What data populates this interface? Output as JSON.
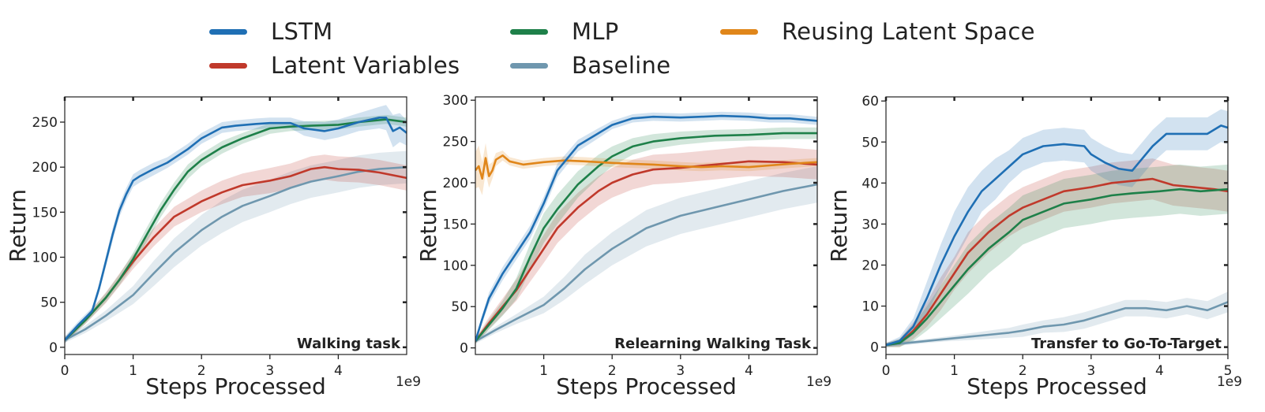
{
  "legend": [
    {
      "name": "LSTM",
      "color": "#1f6fb4"
    },
    {
      "name": "Latent Variables",
      "color": "#c0392b"
    },
    {
      "name": "MLP",
      "color": "#1e8049"
    },
    {
      "name": "Baseline",
      "color": "#6f97ae"
    },
    {
      "name": "Reusing Latent Space",
      "color": "#e0861a"
    }
  ],
  "chart_data": [
    {
      "type": "line",
      "annotation": "Walking task",
      "ylabel": "Return",
      "xlabel": "Steps Processed",
      "xexp": "1e9",
      "xlim": [
        0,
        5
      ],
      "ylim": [
        -8,
        278
      ],
      "xticks": [
        0,
        1,
        2,
        3,
        4
      ],
      "yticks": [
        0,
        50,
        100,
        150,
        200,
        250
      ],
      "series": [
        {
          "name": "LSTM",
          "color": "#1f6fb4",
          "x": [
            0,
            0.2,
            0.4,
            0.5,
            0.6,
            0.7,
            0.8,
            0.9,
            1.0,
            1.1,
            1.3,
            1.5,
            1.8,
            2.0,
            2.3,
            2.5,
            2.8,
            3.0,
            3.3,
            3.5,
            3.8,
            4.0,
            4.3,
            4.6,
            4.7,
            4.8,
            4.9,
            5.0
          ],
          "y": [
            8,
            25,
            40,
            65,
            95,
            125,
            152,
            170,
            185,
            190,
            198,
            205,
            220,
            232,
            244,
            246,
            248,
            249,
            249,
            243,
            240,
            243,
            250,
            255,
            255,
            240,
            244,
            238
          ],
          "band": [
            4,
            4,
            4,
            5,
            6,
            7,
            7,
            7,
            7,
            7,
            7,
            6,
            6,
            6,
            6,
            6,
            6,
            6,
            6,
            8,
            10,
            10,
            10,
            12,
            14,
            18,
            16,
            14
          ]
        },
        {
          "name": "MLP",
          "color": "#1e8049",
          "x": [
            0,
            0.3,
            0.6,
            0.8,
            1.0,
            1.2,
            1.4,
            1.6,
            1.8,
            2.0,
            2.3,
            2.6,
            3.0,
            3.3,
            3.6,
            4.0,
            4.3,
            4.7,
            5.0
          ],
          "y": [
            8,
            30,
            55,
            75,
            98,
            125,
            152,
            175,
            195,
            208,
            222,
            232,
            243,
            245,
            246,
            247,
            250,
            253,
            250
          ],
          "band": [
            3,
            4,
            5,
            6,
            7,
            8,
            8,
            8,
            8,
            7,
            7,
            6,
            6,
            5,
            5,
            5,
            5,
            5,
            5
          ]
        },
        {
          "name": "Latent Variables",
          "color": "#c0392b",
          "x": [
            0,
            0.3,
            0.6,
            0.8,
            1.0,
            1.3,
            1.6,
            2.0,
            2.3,
            2.6,
            3.0,
            3.3,
            3.6,
            3.8,
            4.0,
            4.3,
            4.6,
            5.0
          ],
          "y": [
            8,
            30,
            55,
            75,
            95,
            122,
            145,
            162,
            172,
            180,
            185,
            190,
            198,
            200,
            198,
            197,
            194,
            188
          ],
          "band": [
            3,
            4,
            6,
            7,
            8,
            10,
            11,
            12,
            13,
            13,
            14,
            14,
            14,
            14,
            14,
            14,
            14,
            14
          ]
        },
        {
          "name": "Baseline",
          "color": "#6f97ae",
          "x": [
            0,
            0.3,
            0.6,
            1.0,
            1.3,
            1.6,
            2.0,
            2.3,
            2.6,
            3.0,
            3.3,
            3.6,
            4.0,
            4.3,
            4.6,
            5.0
          ],
          "y": [
            8,
            20,
            35,
            58,
            82,
            105,
            130,
            145,
            157,
            168,
            177,
            184,
            190,
            195,
            198,
            200
          ],
          "band": [
            3,
            4,
            6,
            10,
            14,
            16,
            17,
            18,
            18,
            18,
            18,
            18,
            18,
            18,
            18,
            18
          ]
        }
      ]
    },
    {
      "type": "line",
      "annotation": "Relearning Walking Task",
      "ylabel": "Return",
      "xlabel": "Steps Processed",
      "xexp": "1e9",
      "xlim": [
        0,
        5
      ],
      "ylim": [
        -8,
        304
      ],
      "xticks": [
        1,
        2,
        3,
        4
      ],
      "yticks": [
        0,
        50,
        100,
        150,
        200,
        250,
        300
      ],
      "series": [
        {
          "name": "LSTM",
          "color": "#1f6fb4",
          "x": [
            0,
            0.1,
            0.2,
            0.4,
            0.6,
            0.8,
            1.0,
            1.2,
            1.5,
            1.8,
            2.0,
            2.3,
            2.6,
            3.0,
            3.3,
            3.6,
            4.0,
            4.3,
            4.6,
            5.0
          ],
          "y": [
            8,
            35,
            60,
            90,
            115,
            140,
            175,
            215,
            245,
            260,
            270,
            278,
            280,
            279,
            280,
            281,
            280,
            278,
            278,
            275
          ],
          "band": [
            3,
            5,
            7,
            8,
            8,
            8,
            8,
            8,
            7,
            6,
            5,
            5,
            5,
            5,
            5,
            5,
            5,
            5,
            5,
            5
          ]
        },
        {
          "name": "MLP",
          "color": "#1e8049",
          "x": [
            0,
            0.2,
            0.4,
            0.6,
            0.8,
            1.0,
            1.2,
            1.5,
            1.8,
            2.0,
            2.3,
            2.6,
            3.0,
            3.5,
            4.0,
            4.5,
            5.0
          ],
          "y": [
            8,
            28,
            48,
            72,
            110,
            145,
            168,
            198,
            220,
            232,
            244,
            250,
            254,
            257,
            258,
            260,
            260
          ],
          "band": [
            3,
            6,
            9,
            13,
            16,
            18,
            18,
            16,
            14,
            12,
            10,
            9,
            8,
            7,
            7,
            7,
            7
          ]
        },
        {
          "name": "Latent Variables",
          "color": "#c0392b",
          "x": [
            0,
            0.2,
            0.4,
            0.6,
            0.8,
            1.0,
            1.2,
            1.5,
            1.8,
            2.0,
            2.3,
            2.6,
            3.0,
            3.5,
            4.0,
            4.5,
            5.0
          ],
          "y": [
            8,
            30,
            50,
            70,
            95,
            120,
            145,
            170,
            190,
            200,
            210,
            216,
            218,
            222,
            226,
            225,
            222
          ],
          "band": [
            3,
            7,
            10,
            13,
            15,
            17,
            18,
            18,
            18,
            18,
            18,
            18,
            18,
            18,
            18,
            18,
            18
          ]
        },
        {
          "name": "Baseline",
          "color": "#6f97ae",
          "x": [
            0,
            0.3,
            0.6,
            1.0,
            1.3,
            1.6,
            2.0,
            2.5,
            3.0,
            3.5,
            4.0,
            4.5,
            5.0
          ],
          "y": [
            8,
            22,
            35,
            52,
            72,
            95,
            120,
            145,
            160,
            170,
            180,
            190,
            198
          ],
          "band": [
            3,
            4,
            6,
            10,
            14,
            18,
            20,
            22,
            22,
            22,
            22,
            22,
            22
          ]
        },
        {
          "name": "Reusing Latent Space",
          "color": "#e0861a",
          "x": [
            0,
            0.05,
            0.1,
            0.15,
            0.2,
            0.25,
            0.3,
            0.4,
            0.5,
            0.7,
            1.0,
            1.3,
            1.6,
            2.0,
            2.3,
            2.6,
            3.0,
            3.3,
            3.6,
            4.0,
            4.3,
            4.6,
            5.0
          ],
          "y": [
            215,
            220,
            205,
            230,
            208,
            215,
            228,
            233,
            226,
            222,
            225,
            227,
            226,
            224,
            223,
            222,
            220,
            219,
            220,
            219,
            221,
            223,
            225
          ],
          "band": [
            22,
            25,
            20,
            18,
            14,
            10,
            8,
            6,
            5,
            5,
            5,
            5,
            5,
            5,
            5,
            5,
            5,
            5,
            5,
            5,
            5,
            5,
            5
          ]
        }
      ]
    },
    {
      "type": "line",
      "annotation": "Transfer to Go-To-Target",
      "ylabel": "Return",
      "xlabel": "Steps Processed",
      "xexp": "1e9",
      "xlim": [
        0,
        5
      ],
      "ylim": [
        -1.8,
        61
      ],
      "xticks": [
        0,
        1,
        2,
        3,
        4,
        5
      ],
      "yticks": [
        0,
        10,
        20,
        30,
        40,
        50,
        60
      ],
      "series": [
        {
          "name": "LSTM",
          "color": "#1f6fb4",
          "x": [
            0,
            0.2,
            0.4,
            0.6,
            0.8,
            1.0,
            1.2,
            1.4,
            1.6,
            1.8,
            2.0,
            2.3,
            2.6,
            2.9,
            3.0,
            3.2,
            3.4,
            3.6,
            3.7,
            3.9,
            4.1,
            4.3,
            4.5,
            4.7,
            4.9,
            5.0
          ],
          "y": [
            0.5,
            1.5,
            5,
            12,
            20,
            27,
            33,
            38,
            41,
            44,
            47,
            49,
            49.5,
            49,
            47,
            45,
            43.5,
            43,
            45,
            49,
            52,
            52,
            52,
            52,
            54,
            53.5
          ],
          "band": [
            0.5,
            1,
            2,
            4,
            5,
            6,
            6,
            5,
            5,
            4,
            4,
            4,
            4,
            4,
            4,
            4,
            4,
            4,
            4,
            4,
            4,
            4,
            4,
            4,
            4,
            4
          ]
        },
        {
          "name": "Latent Variables",
          "color": "#c0392b",
          "x": [
            0,
            0.2,
            0.4,
            0.6,
            0.8,
            1.0,
            1.2,
            1.5,
            1.8,
            2.0,
            2.3,
            2.6,
            3.0,
            3.3,
            3.6,
            3.9,
            4.2,
            4.5,
            4.8,
            5.0
          ],
          "y": [
            0.5,
            1,
            4,
            8,
            13,
            18,
            23,
            28,
            32,
            34,
            36,
            38,
            39,
            40,
            40.5,
            41,
            39.5,
            39,
            38.5,
            38
          ],
          "band": [
            0.5,
            1,
            2,
            3,
            4,
            4,
            5,
            5,
            5,
            5,
            5,
            5,
            5,
            5,
            5,
            5,
            5,
            5,
            5,
            5
          ]
        },
        {
          "name": "MLP",
          "color": "#1e8049",
          "x": [
            0,
            0.2,
            0.4,
            0.6,
            0.8,
            1.0,
            1.2,
            1.5,
            1.8,
            2.0,
            2.3,
            2.6,
            3.0,
            3.3,
            3.6,
            4.0,
            4.3,
            4.6,
            5.0
          ],
          "y": [
            0.5,
            1,
            3.5,
            7,
            11,
            15,
            19,
            24,
            28,
            31,
            33,
            35,
            36,
            37,
            37.5,
            38,
            38.5,
            38,
            38.5
          ],
          "band": [
            0.5,
            1,
            2,
            3,
            4,
            5,
            6,
            6,
            6,
            6,
            6,
            6,
            6,
            6,
            6,
            6,
            6,
            6,
            6
          ]
        },
        {
          "name": "Baseline",
          "color": "#6f97ae",
          "x": [
            0,
            0.3,
            0.6,
            0.9,
            1.2,
            1.5,
            1.8,
            2.0,
            2.3,
            2.6,
            2.9,
            3.2,
            3.5,
            3.8,
            4.1,
            4.4,
            4.7,
            5.0
          ],
          "y": [
            0.5,
            1,
            1.5,
            2,
            2.5,
            3,
            3.5,
            4,
            5,
            5.5,
            6.5,
            8,
            9.5,
            9.5,
            9,
            10,
            9,
            11
          ],
          "band": [
            0.5,
            0.5,
            0.5,
            0.6,
            0.8,
            1,
            1.2,
            1.5,
            1.5,
            1.8,
            2,
            2,
            2,
            2,
            2,
            2,
            2.2,
            2.5
          ]
        }
      ]
    }
  ]
}
